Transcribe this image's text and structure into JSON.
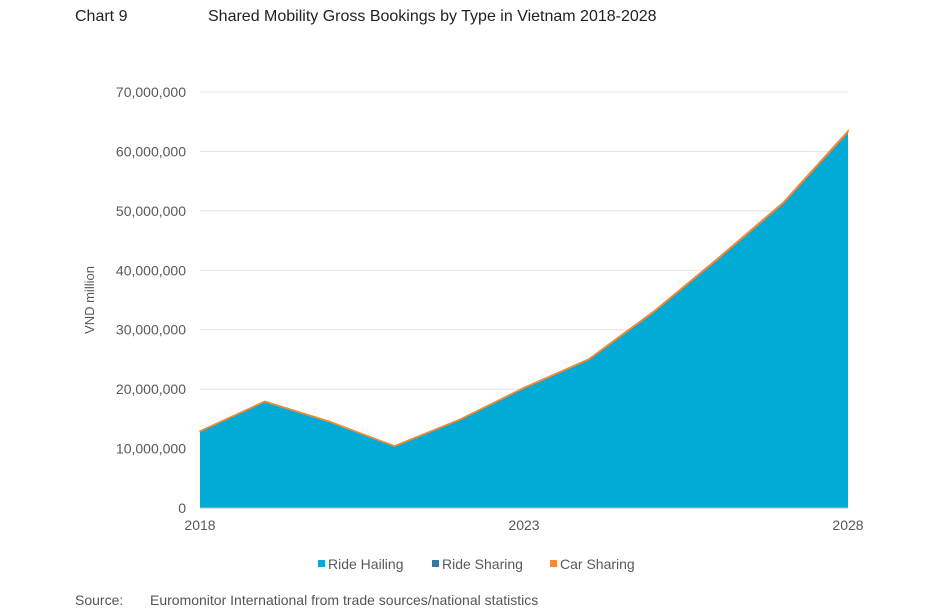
{
  "header": {
    "chart_number": "Chart 9",
    "title": "Shared Mobility Gross Bookings by Type in Vietnam 2018-2028"
  },
  "footer": {
    "source_label": "Source:",
    "source_text": "Euromonitor International from trade sources/national statistics"
  },
  "colors": {
    "ride_hailing": "#02AAD6",
    "ride_sharing": "#3A78A1",
    "car_sharing": "#F38A34",
    "grid": "#e3e3e3",
    "axis": "#bfbfbf"
  },
  "chart_data": {
    "type": "area",
    "stacked": true,
    "title": "Shared Mobility Gross Bookings by Type in Vietnam 2018-2028",
    "xlabel": "",
    "ylabel": "VND million",
    "x": [
      2018,
      2019,
      2020,
      2021,
      2022,
      2023,
      2024,
      2025,
      2026,
      2027,
      2028
    ],
    "x_tick_labels": [
      "2018",
      "2023",
      "2028"
    ],
    "ylim": [
      0,
      70000000
    ],
    "y_tick_labels": [
      "0",
      "10,000,000",
      "20,000,000",
      "30,000,000",
      "40,000,000",
      "50,000,000",
      "60,000,000",
      "70,000,000"
    ],
    "grid": true,
    "legend_position": "bottom",
    "series": [
      {
        "name": "Ride Hailing",
        "values": [
          12900000,
          17900000,
          14500000,
          10400000,
          14800000,
          20200000,
          25000000,
          33000000,
          42000000,
          51300000,
          63300000
        ]
      },
      {
        "name": "Ride Sharing",
        "values": [
          0,
          0,
          0,
          0,
          0,
          0,
          0,
          0,
          0,
          0,
          0
        ]
      },
      {
        "name": "Car Sharing",
        "values": [
          50000,
          60000,
          50000,
          40000,
          50000,
          60000,
          70000,
          80000,
          100000,
          120000,
          140000
        ]
      }
    ]
  }
}
